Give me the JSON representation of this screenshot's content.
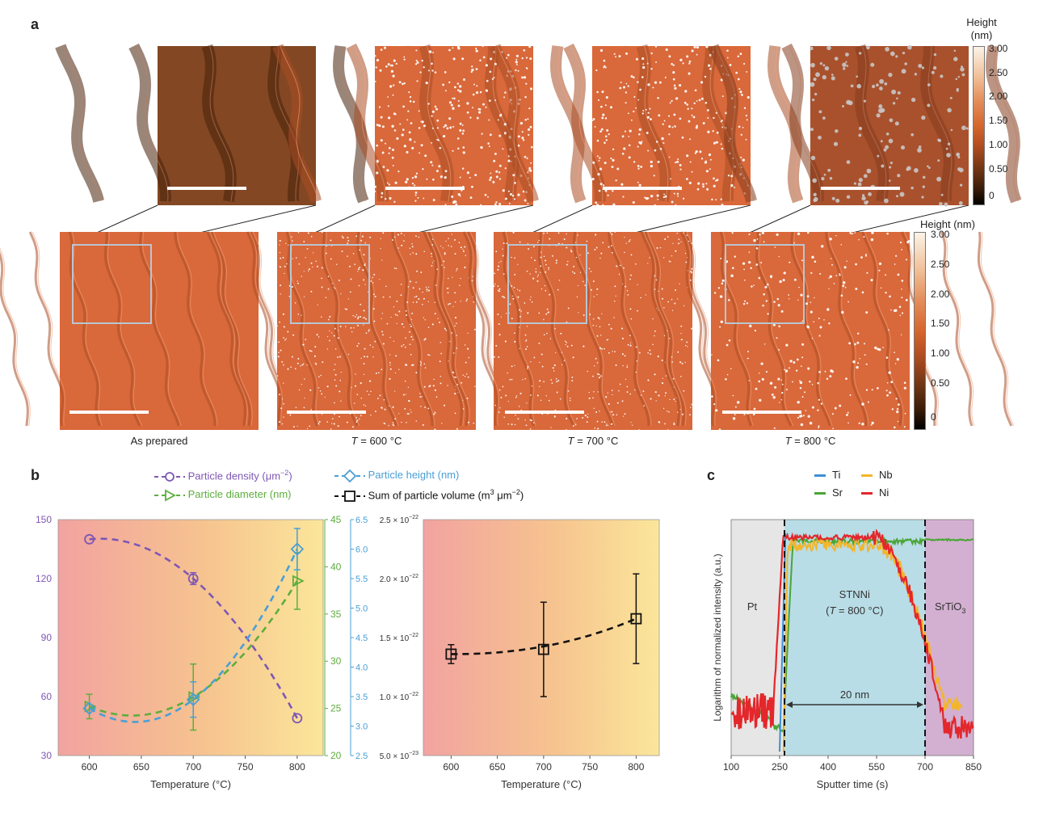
{
  "panel_labels": {
    "a": "a",
    "b": "b",
    "c": "c"
  },
  "panel_a": {
    "captions": [
      "As prepared",
      "= 600 °C",
      "= 700 °C",
      "= 800 °C"
    ],
    "temp_symbol": "T",
    "colorbar_top": {
      "title": "Height\n(nm)",
      "ticks": [
        "3.00",
        "2.50",
        "2.00",
        "1.50",
        "1.00",
        "0.50",
        "0"
      ]
    },
    "colorbar_bottom": {
      "title": "Height (nm)",
      "ticks": [
        "3.00",
        "2.50",
        "2.00",
        "1.50",
        "1.00",
        "0.50",
        "0"
      ]
    },
    "colors": {
      "terrace": "#d9683a",
      "zoombox": "#b9c6d3",
      "particle": "#ffffff"
    }
  },
  "panel_b_legend": {
    "density": "Particle density (μm",
    "density_exp": "−2",
    "density_tail": ")",
    "diameter": "Particle diameter (nm)",
    "height": "Particle height (nm)",
    "volume": "Sum of particle volume (m",
    "volume_exp1": "3",
    "volume_mid": " μm",
    "volume_exp2": "−2",
    "volume_tail": ")"
  },
  "chart_data": [
    {
      "type": "scatter",
      "panel": "b-left",
      "xlabel": "Temperature (°C)",
      "xlim": [
        570,
        825
      ],
      "xticks": [
        "600",
        "650",
        "700",
        "750",
        "800"
      ],
      "axes": {
        "left": {
          "lim": [
            30,
            150
          ],
          "ticks": [
            "30",
            "60",
            "90",
            "120",
            "150"
          ],
          "color": "#7e57b5"
        },
        "right1": {
          "lim": [
            20,
            45
          ],
          "ticks": [
            "20",
            "25",
            "30",
            "35",
            "40",
            "45"
          ],
          "color": "#5dae3d"
        },
        "right2": {
          "lim": [
            2.5,
            6.5
          ],
          "ticks": [
            "2.5",
            "3.0",
            "3.5",
            "4.0",
            "4.5",
            "5.0",
            "5.5",
            "6.0",
            "6.5"
          ],
          "color": "#4a9fd6"
        }
      },
      "series": [
        {
          "name": "Particle density (μm−2)",
          "axis": "left",
          "marker": "circle",
          "color": "#7e57b5",
          "x": [
            600,
            700,
            800
          ],
          "y": [
            140,
            120,
            49
          ],
          "err": [
            0,
            3,
            0
          ]
        },
        {
          "name": "Particle diameter (nm)",
          "axis": "right1",
          "marker": "triangle-right",
          "color": "#5dae3d",
          "x": [
            600,
            700,
            800
          ],
          "y": [
            25.2,
            26.2,
            38.5
          ],
          "err": [
            1.3,
            3.5,
            3.0
          ]
        },
        {
          "name": "Particle height (nm)",
          "axis": "right2",
          "marker": "diamond",
          "color": "#4a9fd6",
          "x": [
            600,
            700,
            800
          ],
          "y": [
            3.3,
            3.45,
            6.0
          ],
          "err": [
            0,
            0.3,
            0.35
          ]
        }
      ]
    },
    {
      "type": "scatter",
      "panel": "b-right",
      "xlabel": "Temperature (°C)",
      "xlim": [
        570,
        825
      ],
      "xticks": [
        "600",
        "650",
        "700",
        "750",
        "800"
      ],
      "ylim": [
        5e-23,
        2.5e-22
      ],
      "yticks": [
        {
          "v": 2.5e-22,
          "m": "2.5",
          "e": "−22"
        },
        {
          "v": 2e-22,
          "m": "2.0",
          "e": "−22"
        },
        {
          "v": 1.5e-22,
          "m": "1.5",
          "e": "−22"
        },
        {
          "v": 1e-22,
          "m": "1.0",
          "e": "−22"
        },
        {
          "v": 5e-23,
          "m": "5.0",
          "e": "−23"
        }
      ],
      "series": [
        {
          "name": "Sum of particle volume (m3 μm−2)",
          "marker": "square",
          "color": "#111111",
          "x": [
            600,
            700,
            800
          ],
          "y": [
            1.36e-22,
            1.4e-22,
            1.66e-22
          ],
          "err": [
            8e-24,
            4e-23,
            3.8e-23
          ]
        }
      ]
    },
    {
      "type": "line",
      "panel": "c",
      "xlabel": "Sputter time (s)",
      "ylabel": "Logarithm of normalized intensity (a.u.)",
      "xlim": [
        100,
        850
      ],
      "xticks": [
        "100",
        "250",
        "400",
        "550",
        "700",
        "850"
      ],
      "regions": [
        {
          "label": "Pt",
          "from": 100,
          "to": 265,
          "color": "#e6e6e6"
        },
        {
          "label": "STNNi",
          "sub_label_pre": "(",
          "sub_label_t": "T",
          "sub_label_post": " = 800 °C)",
          "from": 265,
          "to": 700,
          "color": "#b9dde6"
        },
        {
          "label": "SrTiO",
          "label_sub": "3",
          "from": 700,
          "to": 850,
          "color": "#d3b0d1"
        }
      ],
      "boundaries": [
        265,
        700
      ],
      "annotation": {
        "text": "20 nm",
        "from": 265,
        "to": 700
      },
      "legend": [
        {
          "name": "Ti",
          "color": "#3d8fd8"
        },
        {
          "name": "Nb",
          "color": "#f3b52b"
        },
        {
          "name": "Sr",
          "color": "#4aa536"
        },
        {
          "name": "Ni",
          "color": "#e3272b"
        }
      ]
    }
  ]
}
